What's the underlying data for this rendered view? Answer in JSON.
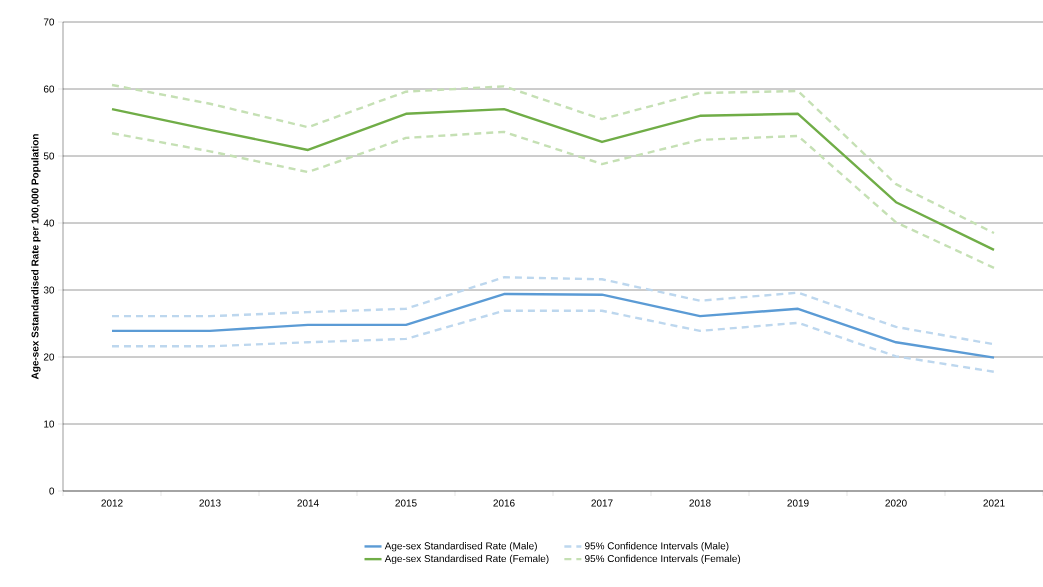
{
  "chart_data": {
    "type": "line",
    "ylabel": "Age-sex Sstandardised Rate per  100,000 Population",
    "categories": [
      "2012",
      "2013",
      "2014",
      "2015",
      "2016",
      "2017",
      "2018",
      "2019",
      "2020",
      "2021"
    ],
    "ylim": [
      0,
      70
    ],
    "yticks": [
      0,
      10,
      20,
      30,
      40,
      50,
      60,
      70
    ],
    "grid": "y",
    "legend": "bottom",
    "marker": "none",
    "series": [
      {
        "name": "Age-sex Standardised Rate (Male)",
        "color": "#5b9bd5",
        "line_style": "solid",
        "values": [
          23.9,
          23.9,
          24.8,
          24.8,
          29.4,
          29.3,
          26.1,
          27.2,
          22.2,
          19.9
        ]
      },
      {
        "name": "95% Confidence Intervals (Male)",
        "color": "#bdd7ee",
        "line_style": "dashed",
        "values": [
          26.1,
          26.1,
          26.7,
          27.2,
          31.9,
          31.6,
          28.4,
          29.6,
          24.5,
          21.9
        ]
      },
      {
        "color": "#bdd7ee",
        "line_style": "dashed",
        "values": [
          21.6,
          21.6,
          22.2,
          22.7,
          26.9,
          26.9,
          23.9,
          25.1,
          20.1,
          17.8
        ]
      },
      {
        "name": "Age-sex Standardised Rate (Female)",
        "color": "#70ad47",
        "line_style": "solid",
        "values": [
          57.0,
          53.9,
          50.9,
          56.3,
          57.0,
          52.1,
          56.0,
          56.3,
          43.1,
          36.0
        ]
      },
      {
        "name": "95% Confidence Intervals (Female)",
        "color": "#c5e0b4",
        "line_style": "dashed",
        "values": [
          60.6,
          57.8,
          54.3,
          59.6,
          60.4,
          55.5,
          59.4,
          59.7,
          45.8,
          38.5
        ]
      },
      {
        "color": "#c5e0b4",
        "line_style": "dashed",
        "values": [
          53.4,
          50.7,
          47.6,
          52.7,
          53.6,
          48.8,
          52.4,
          53.0,
          40.1,
          33.3
        ]
      }
    ]
  }
}
